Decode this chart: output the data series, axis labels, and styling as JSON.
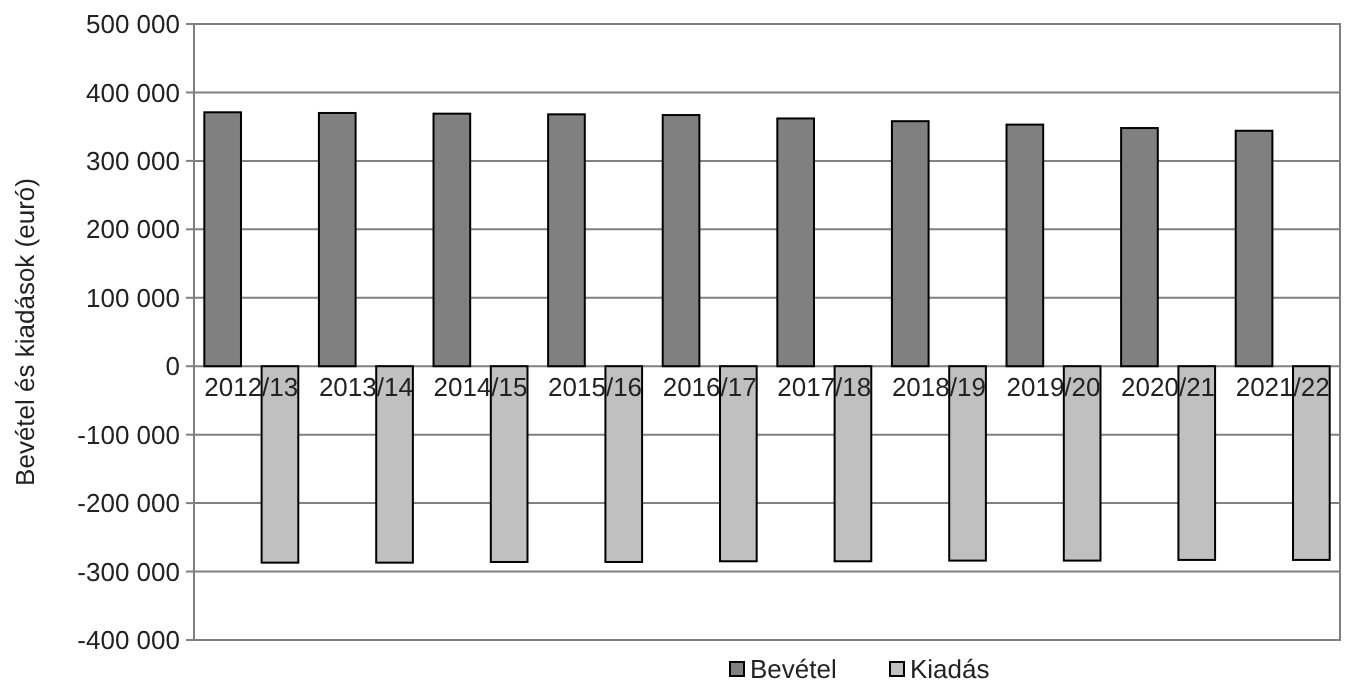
{
  "chart_data": {
    "type": "bar",
    "ylabel": "Bevétel és kiadások (euró)",
    "categories": [
      "2012/13",
      "2013/14",
      "2014/15",
      "2015/16",
      "2016/17",
      "2017/18",
      "2018/19",
      "2019/20",
      "2020/21",
      "2021/22"
    ],
    "series": [
      {
        "name": "Bevétel",
        "color": "#808080",
        "values": [
          371000,
          370000,
          369000,
          368000,
          367000,
          362000,
          358000,
          353000,
          348000,
          344000
        ]
      },
      {
        "name": "Kiadás",
        "color": "#c0c0c0",
        "values": [
          -287000,
          -287000,
          -286000,
          -286000,
          -285000,
          -285000,
          -284000,
          -284000,
          -283000,
          -283000
        ]
      }
    ],
    "ylim": [
      -400000,
      500000
    ],
    "yticks": [
      {
        "value": -400000,
        "label": "-400 000"
      },
      {
        "value": -300000,
        "label": "-300 000"
      },
      {
        "value": -200000,
        "label": "-200 000"
      },
      {
        "value": -100000,
        "label": "-100 000"
      },
      0,
      {
        "value": 100000,
        "label": "100 000"
      },
      {
        "value": 200000,
        "label": "200 000"
      },
      {
        "value": 300000,
        "label": "300 000"
      },
      {
        "value": 400000,
        "label": "400 000"
      },
      {
        "value": 500000,
        "label": "500 000"
      }
    ],
    "grid": "y",
    "legend": "bottom"
  }
}
